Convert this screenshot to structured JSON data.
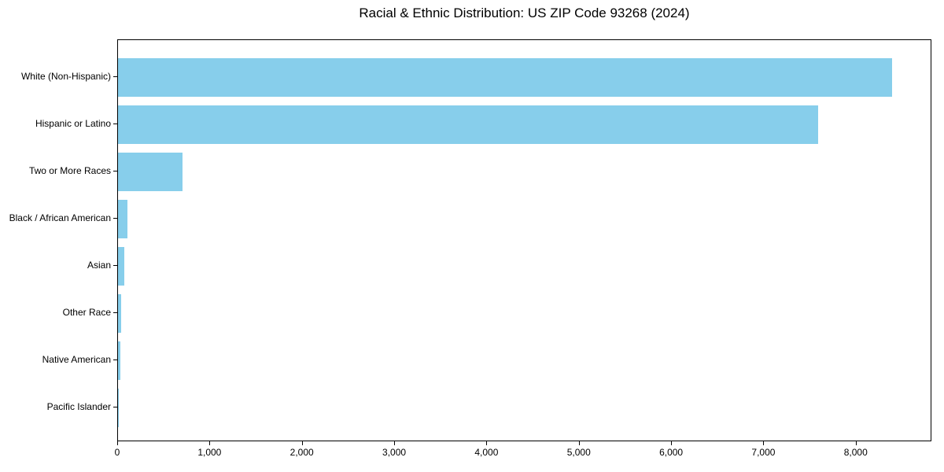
{
  "colors": {
    "bar": "#87CEEB",
    "axis": "#000000",
    "text": "#000000",
    "background": "#ffffff"
  },
  "chart_data": {
    "type": "bar",
    "orientation": "horizontal",
    "title": "Racial & Ethnic Distribution: US ZIP Code 93268 (2024)",
    "categories": [
      "White (Non-Hispanic)",
      "Hispanic or Latino",
      "Two or More Races",
      "Black / African American",
      "Asian",
      "Other Race",
      "Native American",
      "Pacific Islander"
    ],
    "values": [
      8400,
      7600,
      700,
      100,
      65,
      32,
      28,
      5
    ],
    "xlabel": "",
    "ylabel": "",
    "xlim": [
      0,
      8820
    ],
    "xticks": [
      0,
      1000,
      2000,
      3000,
      4000,
      5000,
      6000,
      7000,
      8000
    ],
    "xtick_labels": [
      "0",
      "1,000",
      "2,000",
      "3,000",
      "4,000",
      "5,000",
      "6,000",
      "7,000",
      "8,000"
    ],
    "bar_color": "#87CEEB",
    "grid": false,
    "legend": null
  }
}
